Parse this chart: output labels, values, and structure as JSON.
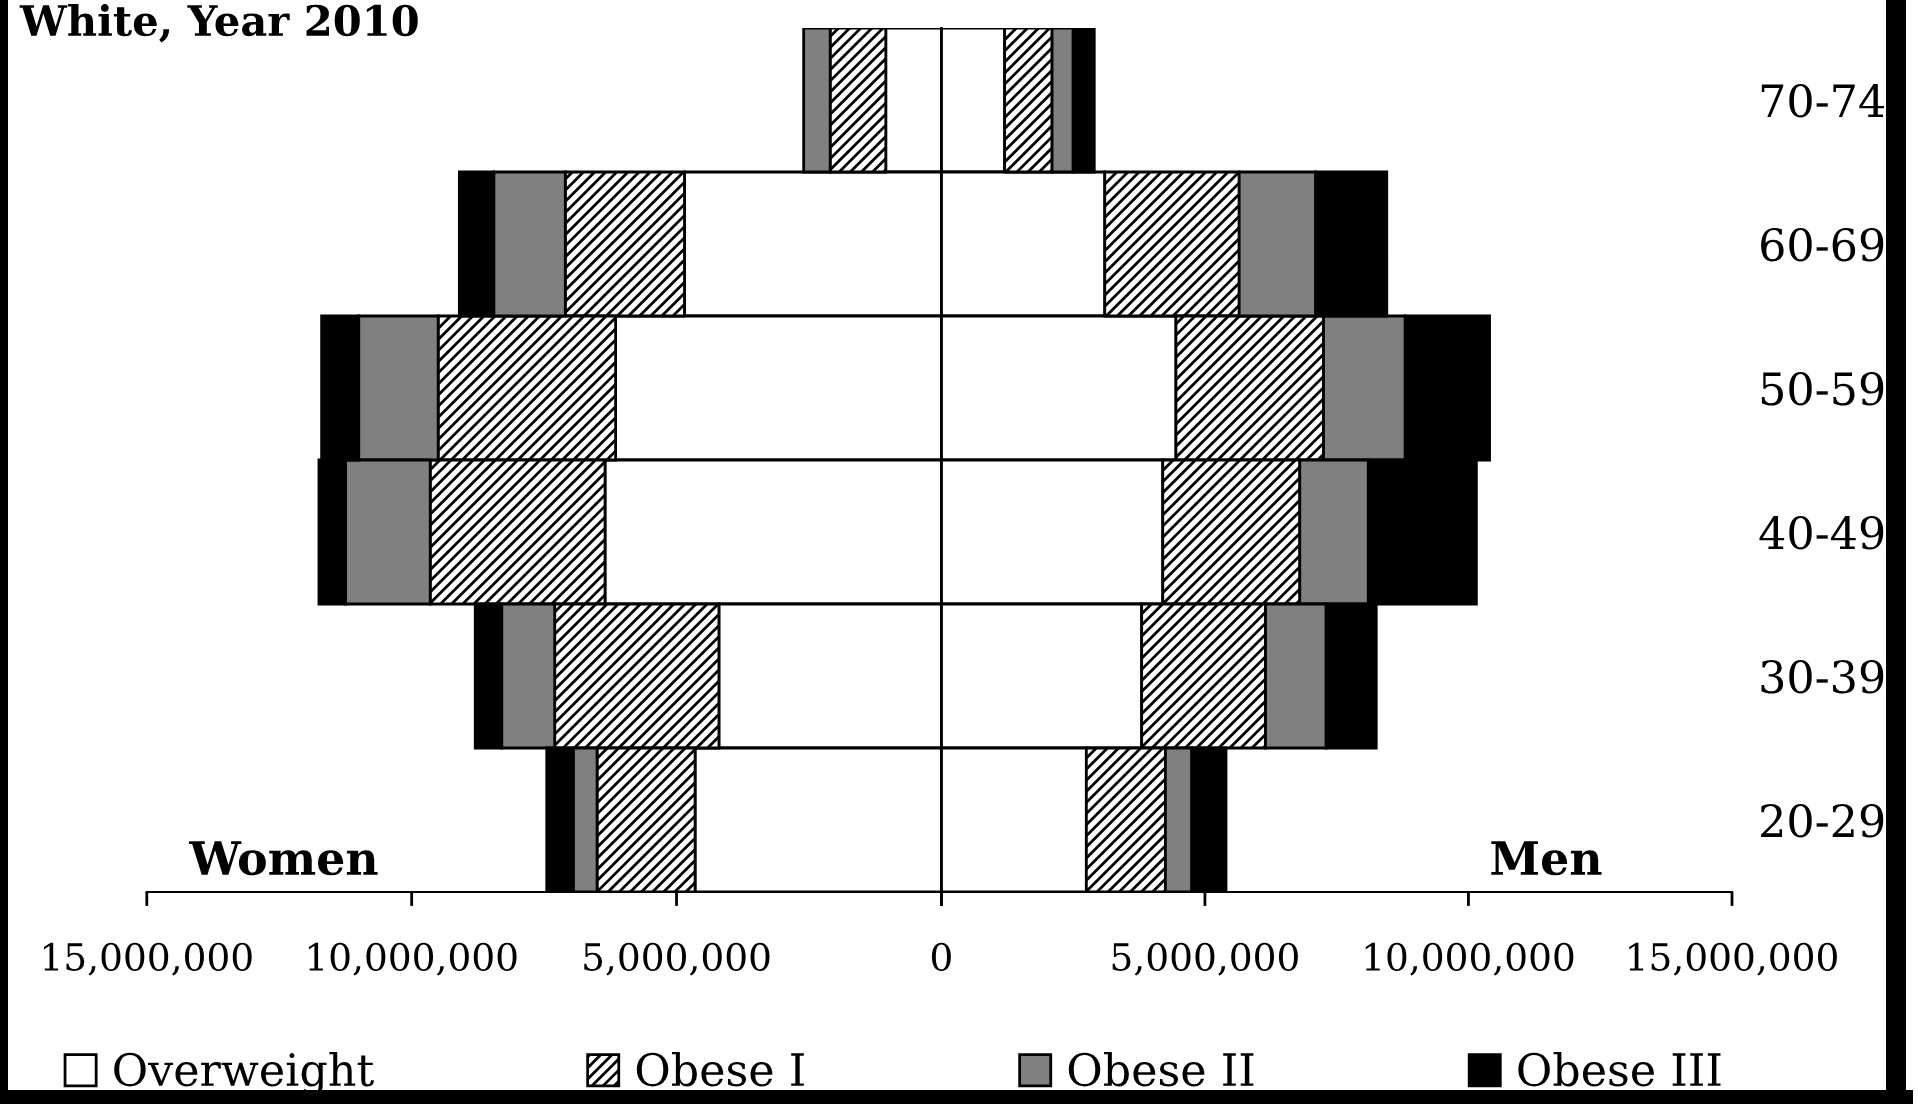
{
  "chart_data": [
    {
      "type": "bar",
      "title": "White, Year 2010",
      "orientation": "horizontal",
      "stacked": true,
      "categories": [
        null,
        null,
        null,
        null,
        null,
        null
      ],
      "series": [
        {
          "name": "Overweight",
          "color": "#ffffff",
          "values": [
            1050000,
            4850000,
            6150000,
            6350000,
            4200000,
            4650000
          ]
        },
        {
          "name": "Obese I",
          "color": "#000000",
          "values": [
            1050000,
            2250000,
            3350000,
            3300000,
            3100000,
            1850000
          ]
        },
        {
          "name": "Obese II",
          "color": "#808080",
          "values": [
            500000,
            1350000,
            1500000,
            1600000,
            1000000,
            450000
          ]
        },
        {
          "name": "Obese III",
          "color": "#000000",
          "values": [
            null,
            650000,
            700000,
            500000,
            500000,
            500000
          ]
        }
      ],
      "xlim": [
        15000000,
        0
      ],
      "xticks": [
        {
          "value": 15000000,
          "label": "15,000,000"
        },
        {
          "value": 10000000,
          "label": "10,000,000"
        },
        {
          "value": 5000000,
          "label": "5,000,000"
        },
        {
          "value": 0,
          "label": null
        }
      ],
      "annotations": [
        "Women"
      ],
      "legend": "bottom",
      "grid": false
    },
    {
      "type": "bar",
      "orientation": "horizontal",
      "stacked": true,
      "categories": [
        "70-74",
        "60-69",
        "50-59",
        "40-49",
        "30-39",
        "20-29"
      ],
      "series": [
        {
          "color": "#ffffff",
          "values": [
            1200000,
            3100000,
            4450000,
            4200000,
            3800000,
            2750000
          ]
        },
        {
          "color": "#000000",
          "values": [
            900000,
            2550000,
            2800000,
            2600000,
            2350000,
            1500000
          ]
        },
        {
          "color": "#808080",
          "values": [
            400000,
            1450000,
            1550000,
            1300000,
            1150000,
            500000
          ]
        },
        {
          "color": "#000000",
          "values": [
            400000,
            1350000,
            1600000,
            2050000,
            950000,
            650000
          ]
        }
      ],
      "xlim": [
        0,
        15000000
      ],
      "xticks": [
        0,
        {
          "value": 5000000,
          "label": "5,000,000"
        },
        {
          "value": 10000000,
          "label": "10,000,000"
        },
        {
          "value": 15000000,
          "label": "15,000,000"
        }
      ],
      "annotations": [
        "Men"
      ],
      "grid": false
    }
  ]
}
